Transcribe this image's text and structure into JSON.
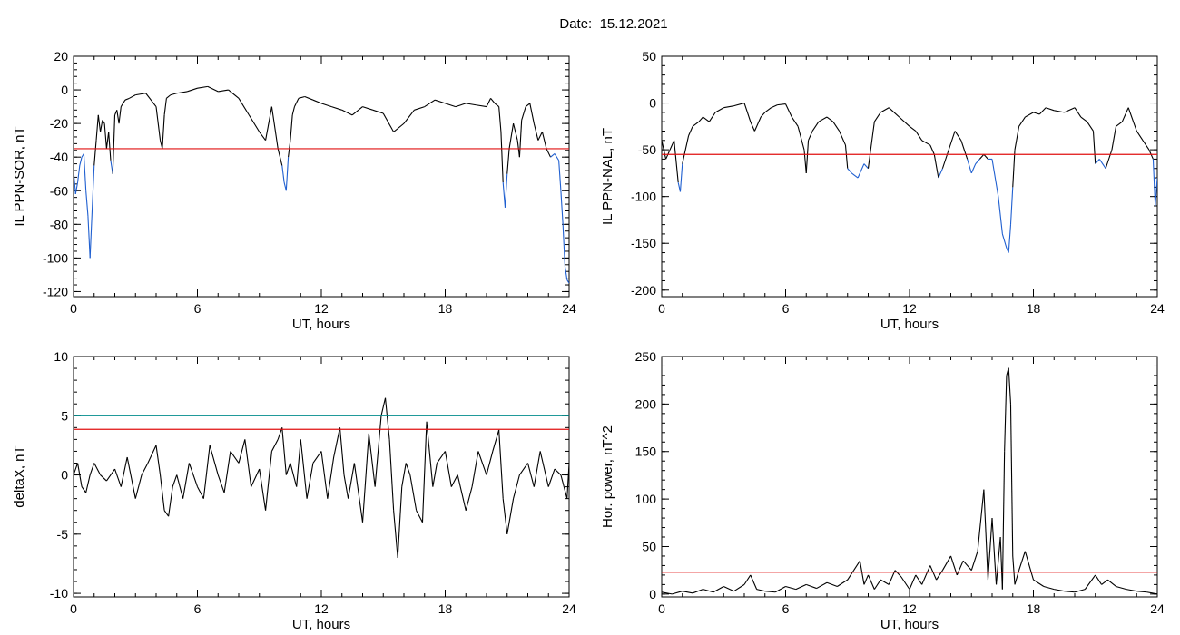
{
  "title_prefix": "Date:",
  "date": "15.12.2021",
  "colors": {
    "trace": "#000000",
    "below_threshold": "#1f5fd0",
    "threshold": "#e01010",
    "upper_threshold": "#008b8b"
  },
  "chart_data": [
    {
      "type": "line",
      "ylabel": "IL PPN-SOR, nT",
      "xlabel": "UT, hours",
      "xlim": [
        0,
        24
      ],
      "xticks": [
        0,
        6,
        12,
        18,
        24
      ],
      "ylim": [
        -123,
        20
      ],
      "yticks": [
        20,
        0,
        -20,
        -40,
        -60,
        -80,
        -100,
        -120
      ],
      "threshold": -35,
      "series": [
        {
          "x": [
            0,
            0.1,
            0.2,
            0.3,
            0.4,
            0.5,
            0.6,
            0.7,
            0.8,
            0.9,
            1.0,
            1.1,
            1.2,
            1.3,
            1.4,
            1.5,
            1.6,
            1.7,
            1.8,
            1.9,
            2.0,
            2.1,
            2.2,
            2.3,
            2.5,
            2.7,
            3.0,
            3.5,
            4.0,
            4.2,
            4.3,
            4.4,
            4.5,
            4.7,
            5.0,
            5.5,
            6.0,
            6.5,
            7.0,
            7.5,
            8.0,
            8.5,
            9.0,
            9.3,
            9.6,
            9.9,
            10.1,
            10.2,
            10.3,
            10.4,
            10.5,
            10.6,
            10.7,
            10.9,
            11.2,
            11.6,
            12.0,
            12.5,
            13.0,
            13.5,
            14.0,
            14.5,
            15.0,
            15.5,
            16.0,
            16.5,
            17.0,
            17.5,
            18.0,
            18.5,
            19.0,
            19.5,
            20.0,
            20.2,
            20.4,
            20.6,
            20.7,
            20.8,
            20.9,
            21.0,
            21.1,
            21.3,
            21.5,
            21.6,
            21.7,
            21.9,
            22.1,
            22.3,
            22.5,
            22.7,
            22.9,
            23.1,
            23.3,
            23.5,
            23.6,
            23.7,
            23.8,
            23.9,
            24.0
          ],
          "y": [
            -48,
            -62,
            -55,
            -45,
            -40,
            -38,
            -60,
            -75,
            -100,
            -72,
            -45,
            -30,
            -15,
            -25,
            -18,
            -20,
            -35,
            -25,
            -42,
            -50,
            -15,
            -12,
            -20,
            -10,
            -6,
            -5,
            -3,
            -2,
            -10,
            -30,
            -35,
            -15,
            -5,
            -3,
            -2,
            -1,
            1,
            2,
            -1,
            0,
            -5,
            -15,
            -25,
            -30,
            -10,
            -35,
            -45,
            -55,
            -60,
            -40,
            -30,
            -15,
            -10,
            -5,
            -4,
            -6,
            -8,
            -10,
            -12,
            -15,
            -10,
            -12,
            -14,
            -25,
            -20,
            -12,
            -10,
            -6,
            -8,
            -10,
            -8,
            -9,
            -10,
            -5,
            -8,
            -10,
            -25,
            -55,
            -70,
            -50,
            -35,
            -20,
            -30,
            -40,
            -18,
            -10,
            -8,
            -20,
            -30,
            -25,
            -35,
            -40,
            -38,
            -42,
            -60,
            -80,
            -105,
            -113,
            -115
          ]
        }
      ]
    },
    {
      "type": "line",
      "ylabel": "IL PPN-NAL, nT",
      "xlabel": "UT, hours",
      "xlim": [
        0,
        24
      ],
      "xticks": [
        0,
        6,
        12,
        18,
        24
      ],
      "ylim": [
        -207,
        50
      ],
      "yticks": [
        50,
        0,
        -50,
        -100,
        -150,
        -200
      ],
      "threshold": -55,
      "series": [
        {
          "x": [
            0,
            0.2,
            0.4,
            0.6,
            0.8,
            0.9,
            1.0,
            1.1,
            1.3,
            1.5,
            1.8,
            2.0,
            2.3,
            2.6,
            3.0,
            3.5,
            4.0,
            4.3,
            4.5,
            4.8,
            5.0,
            5.3,
            5.6,
            6.0,
            6.3,
            6.6,
            6.9,
            7.0,
            7.1,
            7.3,
            7.6,
            8.0,
            8.3,
            8.6,
            8.9,
            9.0,
            9.2,
            9.5,
            9.8,
            10.0,
            10.3,
            10.6,
            11.0,
            11.5,
            12.0,
            12.3,
            12.6,
            13.0,
            13.2,
            13.4,
            13.6,
            13.9,
            14.2,
            14.5,
            14.8,
            15.0,
            15.2,
            15.4,
            15.6,
            15.8,
            16.0,
            16.3,
            16.5,
            16.7,
            16.8,
            16.9,
            17.0,
            17.1,
            17.3,
            17.6,
            18.0,
            18.3,
            18.6,
            19.0,
            19.5,
            20.0,
            20.3,
            20.6,
            20.9,
            21.0,
            21.2,
            21.5,
            21.8,
            22.0,
            22.3,
            22.6,
            23.0,
            23.3,
            23.6,
            23.8,
            23.9,
            24.0
          ],
          "y": [
            -40,
            -60,
            -50,
            -40,
            -85,
            -95,
            -65,
            -55,
            -35,
            -25,
            -20,
            -15,
            -20,
            -10,
            -5,
            -3,
            0,
            -20,
            -30,
            -15,
            -10,
            -5,
            -2,
            -1,
            -15,
            -25,
            -50,
            -75,
            -40,
            -30,
            -20,
            -15,
            -20,
            -30,
            -45,
            -70,
            -75,
            -80,
            -65,
            -70,
            -20,
            -10,
            -5,
            -15,
            -25,
            -30,
            -40,
            -45,
            -55,
            -80,
            -70,
            -50,
            -30,
            -40,
            -60,
            -75,
            -65,
            -60,
            -55,
            -60,
            -60,
            -100,
            -140,
            -155,
            -160,
            -130,
            -90,
            -50,
            -25,
            -15,
            -10,
            -12,
            -5,
            -8,
            -10,
            -5,
            -15,
            -20,
            -30,
            -65,
            -60,
            -70,
            -50,
            -25,
            -20,
            -5,
            -30,
            -40,
            -50,
            -60,
            -110,
            -80
          ]
        }
      ]
    },
    {
      "type": "line",
      "ylabel": "deltaX, nT",
      "xlabel": "UT, hours",
      "xlim": [
        0,
        24
      ],
      "xticks": [
        0,
        6,
        12,
        18,
        24
      ],
      "ylim": [
        -10.3,
        10
      ],
      "yticks": [
        10,
        5,
        0,
        -5,
        -10
      ],
      "threshold": 3.85,
      "upper_threshold": 5,
      "series": [
        {
          "x": [
            0,
            0.2,
            0.4,
            0.6,
            0.8,
            1.0,
            1.3,
            1.6,
            2.0,
            2.3,
            2.6,
            3.0,
            3.3,
            3.6,
            4.0,
            4.2,
            4.4,
            4.6,
            4.8,
            5.0,
            5.3,
            5.6,
            6.0,
            6.3,
            6.6,
            7.0,
            7.3,
            7.6,
            8.0,
            8.3,
            8.6,
            9.0,
            9.3,
            9.6,
            9.9,
            10.1,
            10.3,
            10.5,
            10.8,
            11.0,
            11.3,
            11.6,
            12.0,
            12.3,
            12.6,
            12.9,
            13.1,
            13.3,
            13.6,
            14.0,
            14.3,
            14.6,
            14.9,
            15.1,
            15.3,
            15.5,
            15.7,
            15.9,
            16.1,
            16.3,
            16.6,
            16.9,
            17.1,
            17.4,
            17.6,
            18.0,
            18.3,
            18.6,
            19.0,
            19.3,
            19.6,
            20.0,
            20.3,
            20.6,
            20.8,
            21.0,
            21.3,
            21.6,
            22.0,
            22.3,
            22.6,
            23.0,
            23.3,
            23.6,
            23.9,
            24.0
          ],
          "y": [
            0,
            1,
            -1,
            -1.5,
            0,
            1,
            0,
            -0.5,
            0.5,
            -1,
            1.5,
            -2,
            0,
            1,
            2.5,
            0,
            -3,
            -3.5,
            -1,
            0,
            -2,
            1,
            -1,
            -2,
            2.5,
            0,
            -1.5,
            2,
            1,
            3,
            -1,
            0.5,
            -3,
            2,
            3,
            4,
            0,
            1,
            -1,
            3,
            -2,
            1,
            2,
            -2,
            1.5,
            4,
            0,
            -2,
            1,
            -4,
            3.5,
            -1,
            5,
            6.5,
            3,
            -3,
            -7,
            -1,
            1,
            0,
            -3,
            -4,
            4.5,
            -1,
            1,
            2,
            -1,
            0,
            -3,
            -1,
            2,
            0,
            2,
            3.8,
            -2,
            -5,
            -2,
            0,
            1,
            -1,
            2,
            -1,
            0.5,
            0,
            -2,
            1
          ]
        }
      ]
    },
    {
      "type": "line",
      "ylabel": "Hor. power, nT^2",
      "xlabel": "UT, hours",
      "xlim": [
        0,
        24
      ],
      "xticks": [
        0,
        6,
        12,
        18,
        24
      ],
      "ylim": [
        -3,
        250
      ],
      "yticks": [
        250,
        200,
        150,
        100,
        50,
        0
      ],
      "threshold": 23,
      "series": [
        {
          "x": [
            0,
            0.5,
            1,
            1.5,
            2,
            2.5,
            3,
            3.5,
            4,
            4.3,
            4.6,
            5,
            5.5,
            6,
            6.5,
            7,
            7.5,
            8,
            8.5,
            9,
            9.3,
            9.6,
            9.8,
            10,
            10.3,
            10.6,
            11,
            11.3,
            11.6,
            12,
            12.3,
            12.6,
            13,
            13.3,
            13.6,
            14,
            14.3,
            14.6,
            15,
            15.3,
            15.6,
            15.8,
            16,
            16.2,
            16.4,
            16.5,
            16.6,
            16.7,
            16.8,
            16.9,
            17.0,
            17.1,
            17.3,
            17.6,
            18,
            18.5,
            19,
            19.5,
            20,
            20.5,
            21,
            21.3,
            21.6,
            22,
            22.5,
            23,
            23.5,
            24
          ],
          "y": [
            2,
            0,
            3,
            1,
            5,
            2,
            8,
            3,
            10,
            20,
            5,
            3,
            2,
            8,
            5,
            10,
            6,
            12,
            8,
            15,
            25,
            35,
            10,
            20,
            5,
            15,
            10,
            25,
            18,
            5,
            20,
            10,
            30,
            15,
            25,
            40,
            20,
            35,
            25,
            45,
            110,
            15,
            80,
            10,
            60,
            5,
            150,
            230,
            238,
            200,
            40,
            10,
            25,
            45,
            15,
            8,
            5,
            3,
            2,
            5,
            20,
            10,
            15,
            8,
            5,
            3,
            2,
            0
          ]
        }
      ]
    }
  ]
}
